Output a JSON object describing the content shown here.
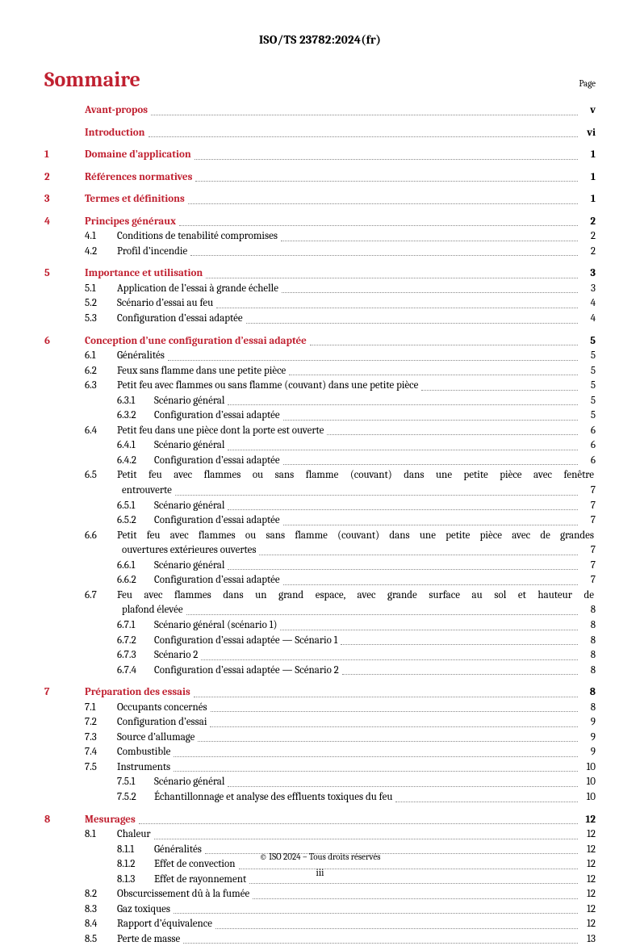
{
  "header": "ISO/TS 23782:2024(fr)",
  "title": "Sommaire",
  "page_label": "Page",
  "footer_copyright": "© ISO 2024 – Tous droits réservés",
  "footer_pagenum": "iii",
  "colors": {
    "accent": "#c02030",
    "leader": "#888888",
    "text": "#000000",
    "background": "#ffffff"
  },
  "typography": {
    "body_fontsize_pt": 10,
    "title_fontsize_pt": 20,
    "header_fontsize_pt": 11
  },
  "toc": [
    {
      "level": 0,
      "num": "",
      "title": "Avant-propos",
      "page": "v",
      "bold": true,
      "red": true,
      "section_start": true
    },
    {
      "level": 0,
      "num": "",
      "title": "Introduction",
      "page": "vi",
      "bold": true,
      "red": true,
      "section_start": true
    },
    {
      "level": 0,
      "num": "1",
      "title": "Domaine d’application",
      "page": "1",
      "bold": true,
      "red": true,
      "section_start": true
    },
    {
      "level": 0,
      "num": "2",
      "title": "Références normatives",
      "page": "1",
      "bold": true,
      "red": true,
      "section_start": true
    },
    {
      "level": 0,
      "num": "3",
      "title": "Termes et définitions",
      "page": "1",
      "bold": true,
      "red": true,
      "section_start": true
    },
    {
      "level": 0,
      "num": "4",
      "title": "Principes généraux",
      "page": "2",
      "bold": true,
      "red": true,
      "section_start": true
    },
    {
      "level": 1,
      "num": "4.1",
      "title": "Conditions de tenabilité compromises",
      "page": "2"
    },
    {
      "level": 1,
      "num": "4.2",
      "title": "Profil d’incendie",
      "page": "2"
    },
    {
      "level": 0,
      "num": "5",
      "title": "Importance et utilisation",
      "page": "3",
      "bold": true,
      "red": true,
      "section_start": true
    },
    {
      "level": 1,
      "num": "5.1",
      "title": "Application de l’essai à grande échelle",
      "page": "3"
    },
    {
      "level": 1,
      "num": "5.2",
      "title": "Scénario d’essai au feu",
      "page": "4"
    },
    {
      "level": 1,
      "num": "5.3",
      "title": "Configuration d’essai adaptée",
      "page": "4"
    },
    {
      "level": 0,
      "num": "6",
      "title": "Conception d’une configuration d’essai adaptée",
      "page": "5",
      "bold": true,
      "red": true,
      "section_start": true
    },
    {
      "level": 1,
      "num": "6.1",
      "title": "Généralités",
      "page": "5"
    },
    {
      "level": 1,
      "num": "6.2",
      "title": "Feux sans flamme dans une petite pièce",
      "page": "5"
    },
    {
      "level": 1,
      "num": "6.3",
      "title": "Petit feu avec flammes ou sans flamme (couvant) dans une petite pièce",
      "page": "5"
    },
    {
      "level": 2,
      "num": "6.3.1",
      "title": "Scénario général",
      "page": "5"
    },
    {
      "level": 2,
      "num": "6.3.2",
      "title": "Configuration d’essai adaptée",
      "page": "5"
    },
    {
      "level": 1,
      "num": "6.4",
      "title": "Petit feu dans une pièce dont la porte est ouverte",
      "page": "6"
    },
    {
      "level": 2,
      "num": "6.4.1",
      "title": "Scénario général",
      "page": "6"
    },
    {
      "level": 2,
      "num": "6.4.2",
      "title": "Configuration d’essai adaptée",
      "page": "6"
    },
    {
      "level": 1,
      "num": "6.5",
      "title_wrap": [
        "Petit feu avec flammes ou sans flamme (couvant) dans une petite pièce avec fenêtre",
        "entrouverte"
      ],
      "page": "7"
    },
    {
      "level": 2,
      "num": "6.5.1",
      "title": "Scénario général",
      "page": "7"
    },
    {
      "level": 2,
      "num": "6.5.2",
      "title": "Configuration d’essai adaptée",
      "page": "7"
    },
    {
      "level": 1,
      "num": "6.6",
      "title_wrap": [
        "Petit feu avec flammes ou sans flamme (couvant) dans une petite pièce avec de grandes",
        "ouvertures extérieures ouvertes"
      ],
      "page": "7"
    },
    {
      "level": 2,
      "num": "6.6.1",
      "title": "Scénario général",
      "page": "7"
    },
    {
      "level": 2,
      "num": "6.6.2",
      "title": "Configuration d’essai adaptée",
      "page": "7"
    },
    {
      "level": 1,
      "num": "6.7",
      "title_wrap": [
        "Feu avec flammes dans un grand espace, avec grande surface au sol et hauteur de",
        "plafond élevée"
      ],
      "page": "8"
    },
    {
      "level": 2,
      "num": "6.7.1",
      "title": "Scénario général (scénario 1)",
      "page": "8"
    },
    {
      "level": 2,
      "num": "6.7.2",
      "title": "Configuration d’essai adaptée — Scénario 1",
      "page": "8"
    },
    {
      "level": 2,
      "num": "6.7.3",
      "title": "Scénario 2",
      "page": "8"
    },
    {
      "level": 2,
      "num": "6.7.4",
      "title": "Configuration d’essai adaptée — Scénario 2",
      "page": "8"
    },
    {
      "level": 0,
      "num": "7",
      "title": "Préparation des essais",
      "page": "8",
      "bold": true,
      "red": true,
      "section_start": true
    },
    {
      "level": 1,
      "num": "7.1",
      "title": "Occupants concernés",
      "page": "8"
    },
    {
      "level": 1,
      "num": "7.2",
      "title": "Configuration d’essai",
      "page": "9"
    },
    {
      "level": 1,
      "num": "7.3",
      "title": "Source d’allumage",
      "page": "9"
    },
    {
      "level": 1,
      "num": "7.4",
      "title": "Combustible",
      "page": "9"
    },
    {
      "level": 1,
      "num": "7.5",
      "title": "Instruments",
      "page": "10"
    },
    {
      "level": 2,
      "num": "7.5.1",
      "title": "Scénario général",
      "page": "10"
    },
    {
      "level": 2,
      "num": "7.5.2",
      "title": "Échantillonnage et analyse des effluents toxiques du feu",
      "page": "10"
    },
    {
      "level": 0,
      "num": "8",
      "title": "Mesurages",
      "page": "12",
      "bold": true,
      "red": true,
      "section_start": true
    },
    {
      "level": 1,
      "num": "8.1",
      "title": "Chaleur",
      "page": "12"
    },
    {
      "level": 2,
      "num": "8.1.1",
      "title": "Généralités",
      "page": "12"
    },
    {
      "level": 2,
      "num": "8.1.2",
      "title": "Effet de convection",
      "page": "12"
    },
    {
      "level": 2,
      "num": "8.1.3",
      "title": "Effet de rayonnement",
      "page": "12"
    },
    {
      "level": 1,
      "num": "8.2",
      "title": "Obscurcissement dû à la fumée",
      "page": "12"
    },
    {
      "level": 1,
      "num": "8.3",
      "title": "Gaz toxiques",
      "page": "12"
    },
    {
      "level": 1,
      "num": "8.4",
      "title": "Rapport d’équivalence",
      "page": "12"
    },
    {
      "level": 1,
      "num": "8.5",
      "title": "Perte de masse",
      "page": "13"
    }
  ]
}
